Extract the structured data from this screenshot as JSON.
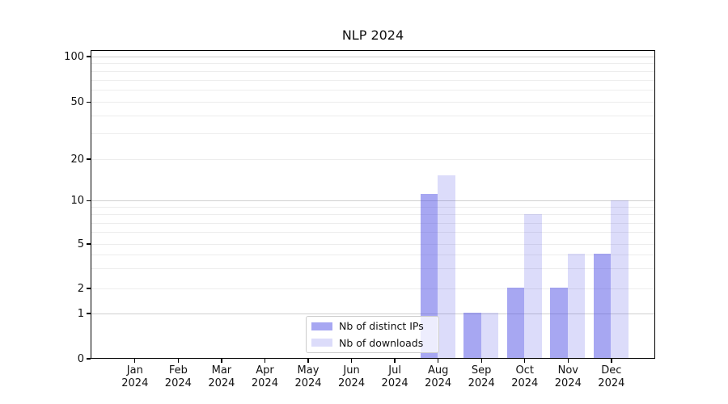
{
  "title": "NLP 2024",
  "chart_data": {
    "type": "bar",
    "title": "NLP 2024",
    "xlabel": "",
    "ylabel": "",
    "categories": [
      "Jan 2024",
      "Feb 2024",
      "Mar 2024",
      "Apr 2024",
      "May 2024",
      "Jun 2024",
      "Jul 2024",
      "Aug 2024",
      "Sep 2024",
      "Oct 2024",
      "Nov 2024",
      "Dec 2024"
    ],
    "series": [
      {
        "name": "Nb of distinct IPs",
        "color": "rgba(80,80,230,0.5)",
        "values": [
          0,
          0,
          0,
          0,
          0,
          0,
          0,
          11,
          1,
          2,
          2,
          4
        ]
      },
      {
        "name": "Nb of downloads",
        "color": "rgba(80,80,230,0.2)",
        "values": [
          0,
          0,
          0,
          0,
          0,
          0,
          0,
          15,
          1,
          8,
          4,
          10
        ]
      }
    ],
    "yscale": "symlog",
    "ylim": [
      0,
      130
    ],
    "ytick_values": [
      0,
      1,
      2,
      5,
      10,
      20,
      50,
      100
    ],
    "major_gridline_values": [
      1,
      10,
      100
    ],
    "minor_gridline_values": [
      2,
      3,
      4,
      5,
      6,
      7,
      8,
      9,
      20,
      30,
      40,
      50,
      60,
      70,
      80,
      90
    ],
    "grid": true,
    "legend_position": "lower center"
  },
  "legend": {
    "items": [
      {
        "label": "Nb of distinct IPs",
        "color": "rgba(80,80,230,0.5)"
      },
      {
        "label": "Nb of downloads",
        "color": "rgba(80,80,230,0.2)"
      }
    ]
  },
  "colors": {
    "ips_bar": "rgba(80,80,230,0.5)",
    "downloads_bar": "rgba(80,80,230,0.2)",
    "major_grid": "#d0d0d0",
    "minor_grid": "#ededed",
    "spine": "#000000",
    "text": "#111111"
  }
}
